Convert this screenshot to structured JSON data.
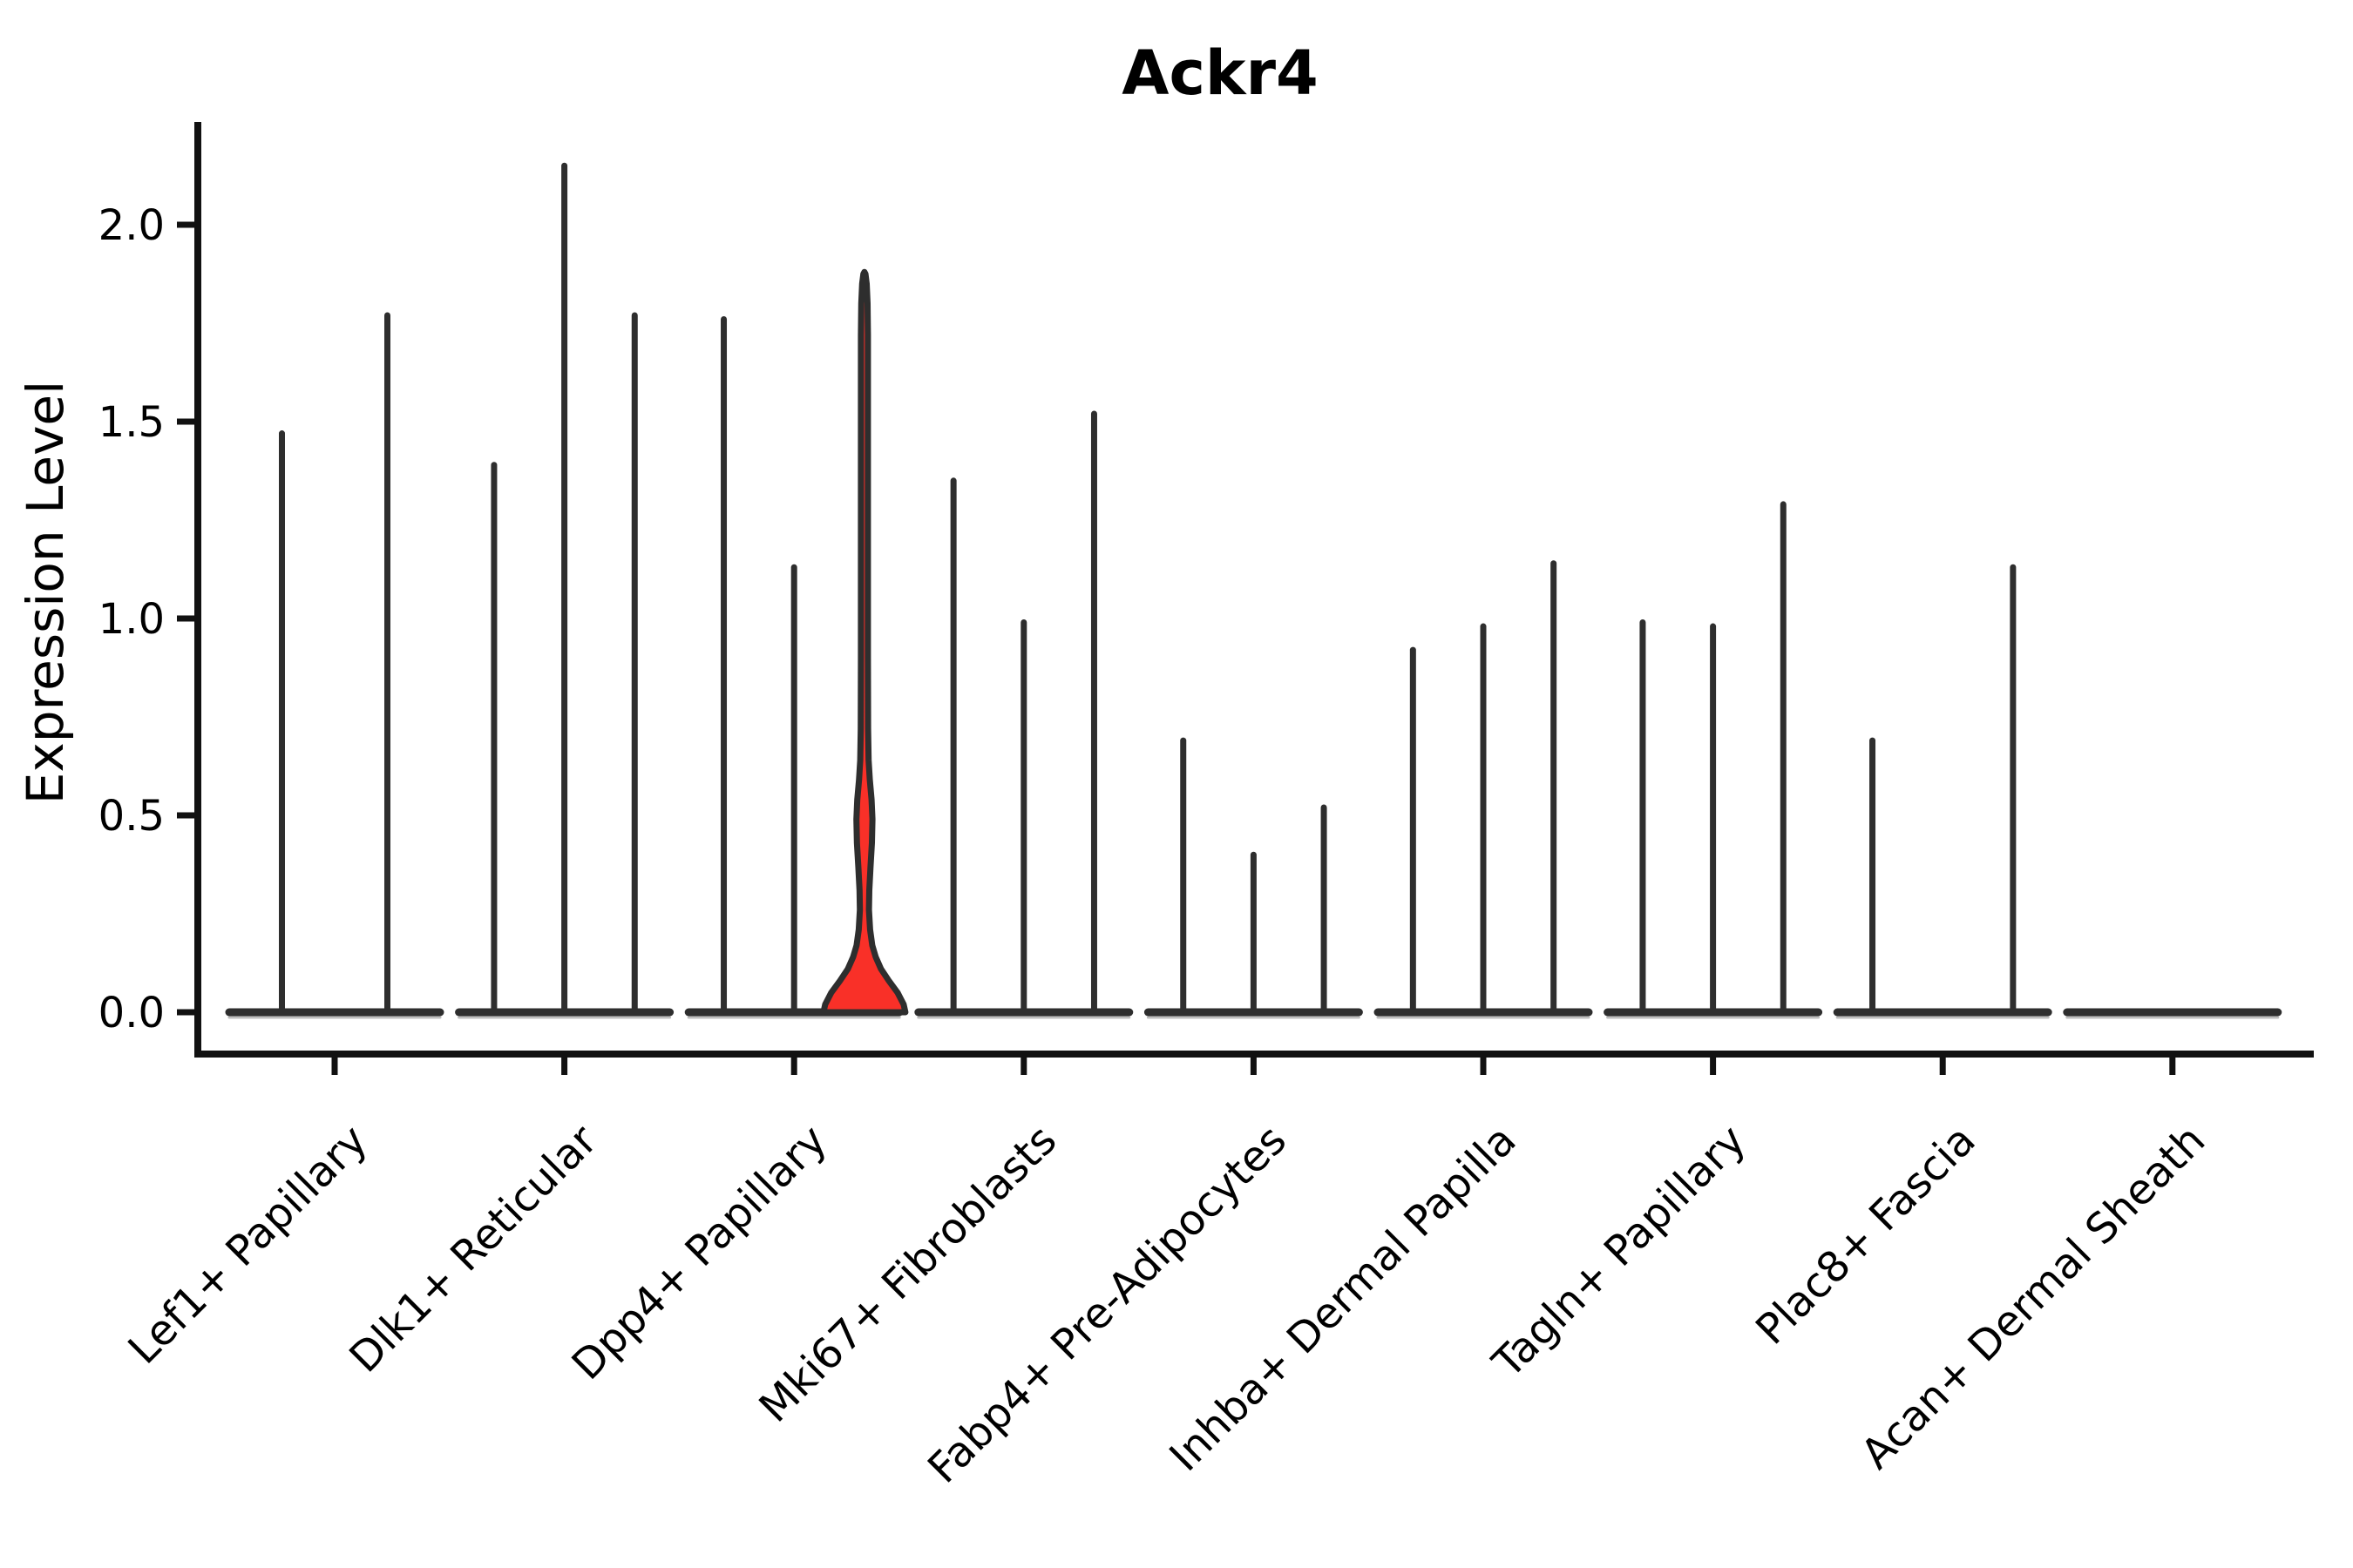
{
  "chart_data": {
    "type": "violin",
    "title": "Ackr4",
    "ylabel": "Expression Level",
    "xlabel": "",
    "ylim": [
      0,
      2.24
    ],
    "yticks": [
      0.0,
      0.5,
      1.0,
      1.5,
      2.0
    ],
    "ytick_labels": [
      "0.0",
      "0.5",
      "1.0",
      "1.5",
      "2.0"
    ],
    "grid": "off",
    "legend": "none",
    "categories": [
      "Lef1+ Papillary",
      "Dlk1+ Reticular",
      "Dpp4+ Papillary",
      "Mki67+ Fibroblasts",
      "Fabp4+ Pre-Adipocytes",
      "Inhba+ Dermal Papilla",
      "Tagln+ Papillary",
      "Plac8+ Fascia",
      "Acan+ Dermal Sheath"
    ],
    "groups": [
      {
        "label": "Lef1+ Papillary",
        "violins": [
          {
            "max": 1.47
          },
          {
            "max": 1.77
          }
        ]
      },
      {
        "label": "Dlk1+ Reticular",
        "violins": [
          {
            "max": 1.39
          },
          {
            "max": 2.15
          },
          {
            "max": 1.77
          }
        ]
      },
      {
        "label": "Dpp4+ Papillary",
        "violins": [
          {
            "max": 1.76
          },
          {
            "max": 1.13
          },
          {
            "max": 1.88,
            "highlighted": true
          }
        ]
      },
      {
        "label": "Mki67+ Fibroblasts",
        "violins": [
          {
            "max": 1.35
          },
          {
            "max": 0.99
          },
          {
            "max": 1.52
          }
        ]
      },
      {
        "label": "Fabp4+ Pre-Adipocytes",
        "violins": [
          {
            "max": 0.69
          },
          {
            "max": 0.4
          },
          {
            "max": 0.52
          }
        ]
      },
      {
        "label": "Inhba+ Dermal Papilla",
        "violins": [
          {
            "max": 0.92
          },
          {
            "max": 0.98
          },
          {
            "max": 1.14
          }
        ]
      },
      {
        "label": "Tagln+ Papillary",
        "violins": [
          {
            "max": 0.99
          },
          {
            "max": 0.98
          },
          {
            "max": 1.29
          }
        ]
      },
      {
        "label": "Plac8+ Fascia",
        "violins": [
          {
            "max": 0.69
          },
          {
            "max": 0.0
          },
          {
            "max": 1.13
          }
        ]
      },
      {
        "label": "Acan+ Dermal Sheath",
        "violins": [
          {
            "max": 0.0
          },
          {
            "max": 0.0
          },
          {
            "max": 0.0
          }
        ]
      }
    ],
    "highlight": {
      "group": "Dpp4+ Papillary",
      "violin_index": 2,
      "fill": "#f93028",
      "max": 1.88,
      "profile_value_halfwidth": [
        [
          0.0,
          47
        ],
        [
          0.02,
          45
        ],
        [
          0.05,
          38
        ],
        [
          0.08,
          28
        ],
        [
          0.11,
          19
        ],
        [
          0.14,
          13
        ],
        [
          0.17,
          9
        ],
        [
          0.21,
          6.5
        ],
        [
          0.26,
          5.2
        ],
        [
          0.31,
          5.6
        ],
        [
          0.37,
          7.0
        ],
        [
          0.43,
          8.6
        ],
        [
          0.49,
          9.2
        ],
        [
          0.54,
          8.2
        ],
        [
          0.59,
          6.2
        ],
        [
          0.64,
          4.8
        ],
        [
          0.72,
          4.2
        ],
        [
          0.9,
          4.0
        ],
        [
          1.2,
          4.0
        ],
        [
          1.5,
          4.0
        ],
        [
          1.72,
          4.0
        ],
        [
          1.8,
          3.6
        ],
        [
          1.85,
          2.6
        ],
        [
          1.875,
          1.2
        ],
        [
          1.88,
          0
        ]
      ]
    },
    "colors": {
      "line": "#2e2e2e",
      "spine": "#111111",
      "highlight_fill": "#f93028",
      "baseline_shadow": "#bdbdbd",
      "background": "#ffffff",
      "text": "#000000"
    }
  }
}
